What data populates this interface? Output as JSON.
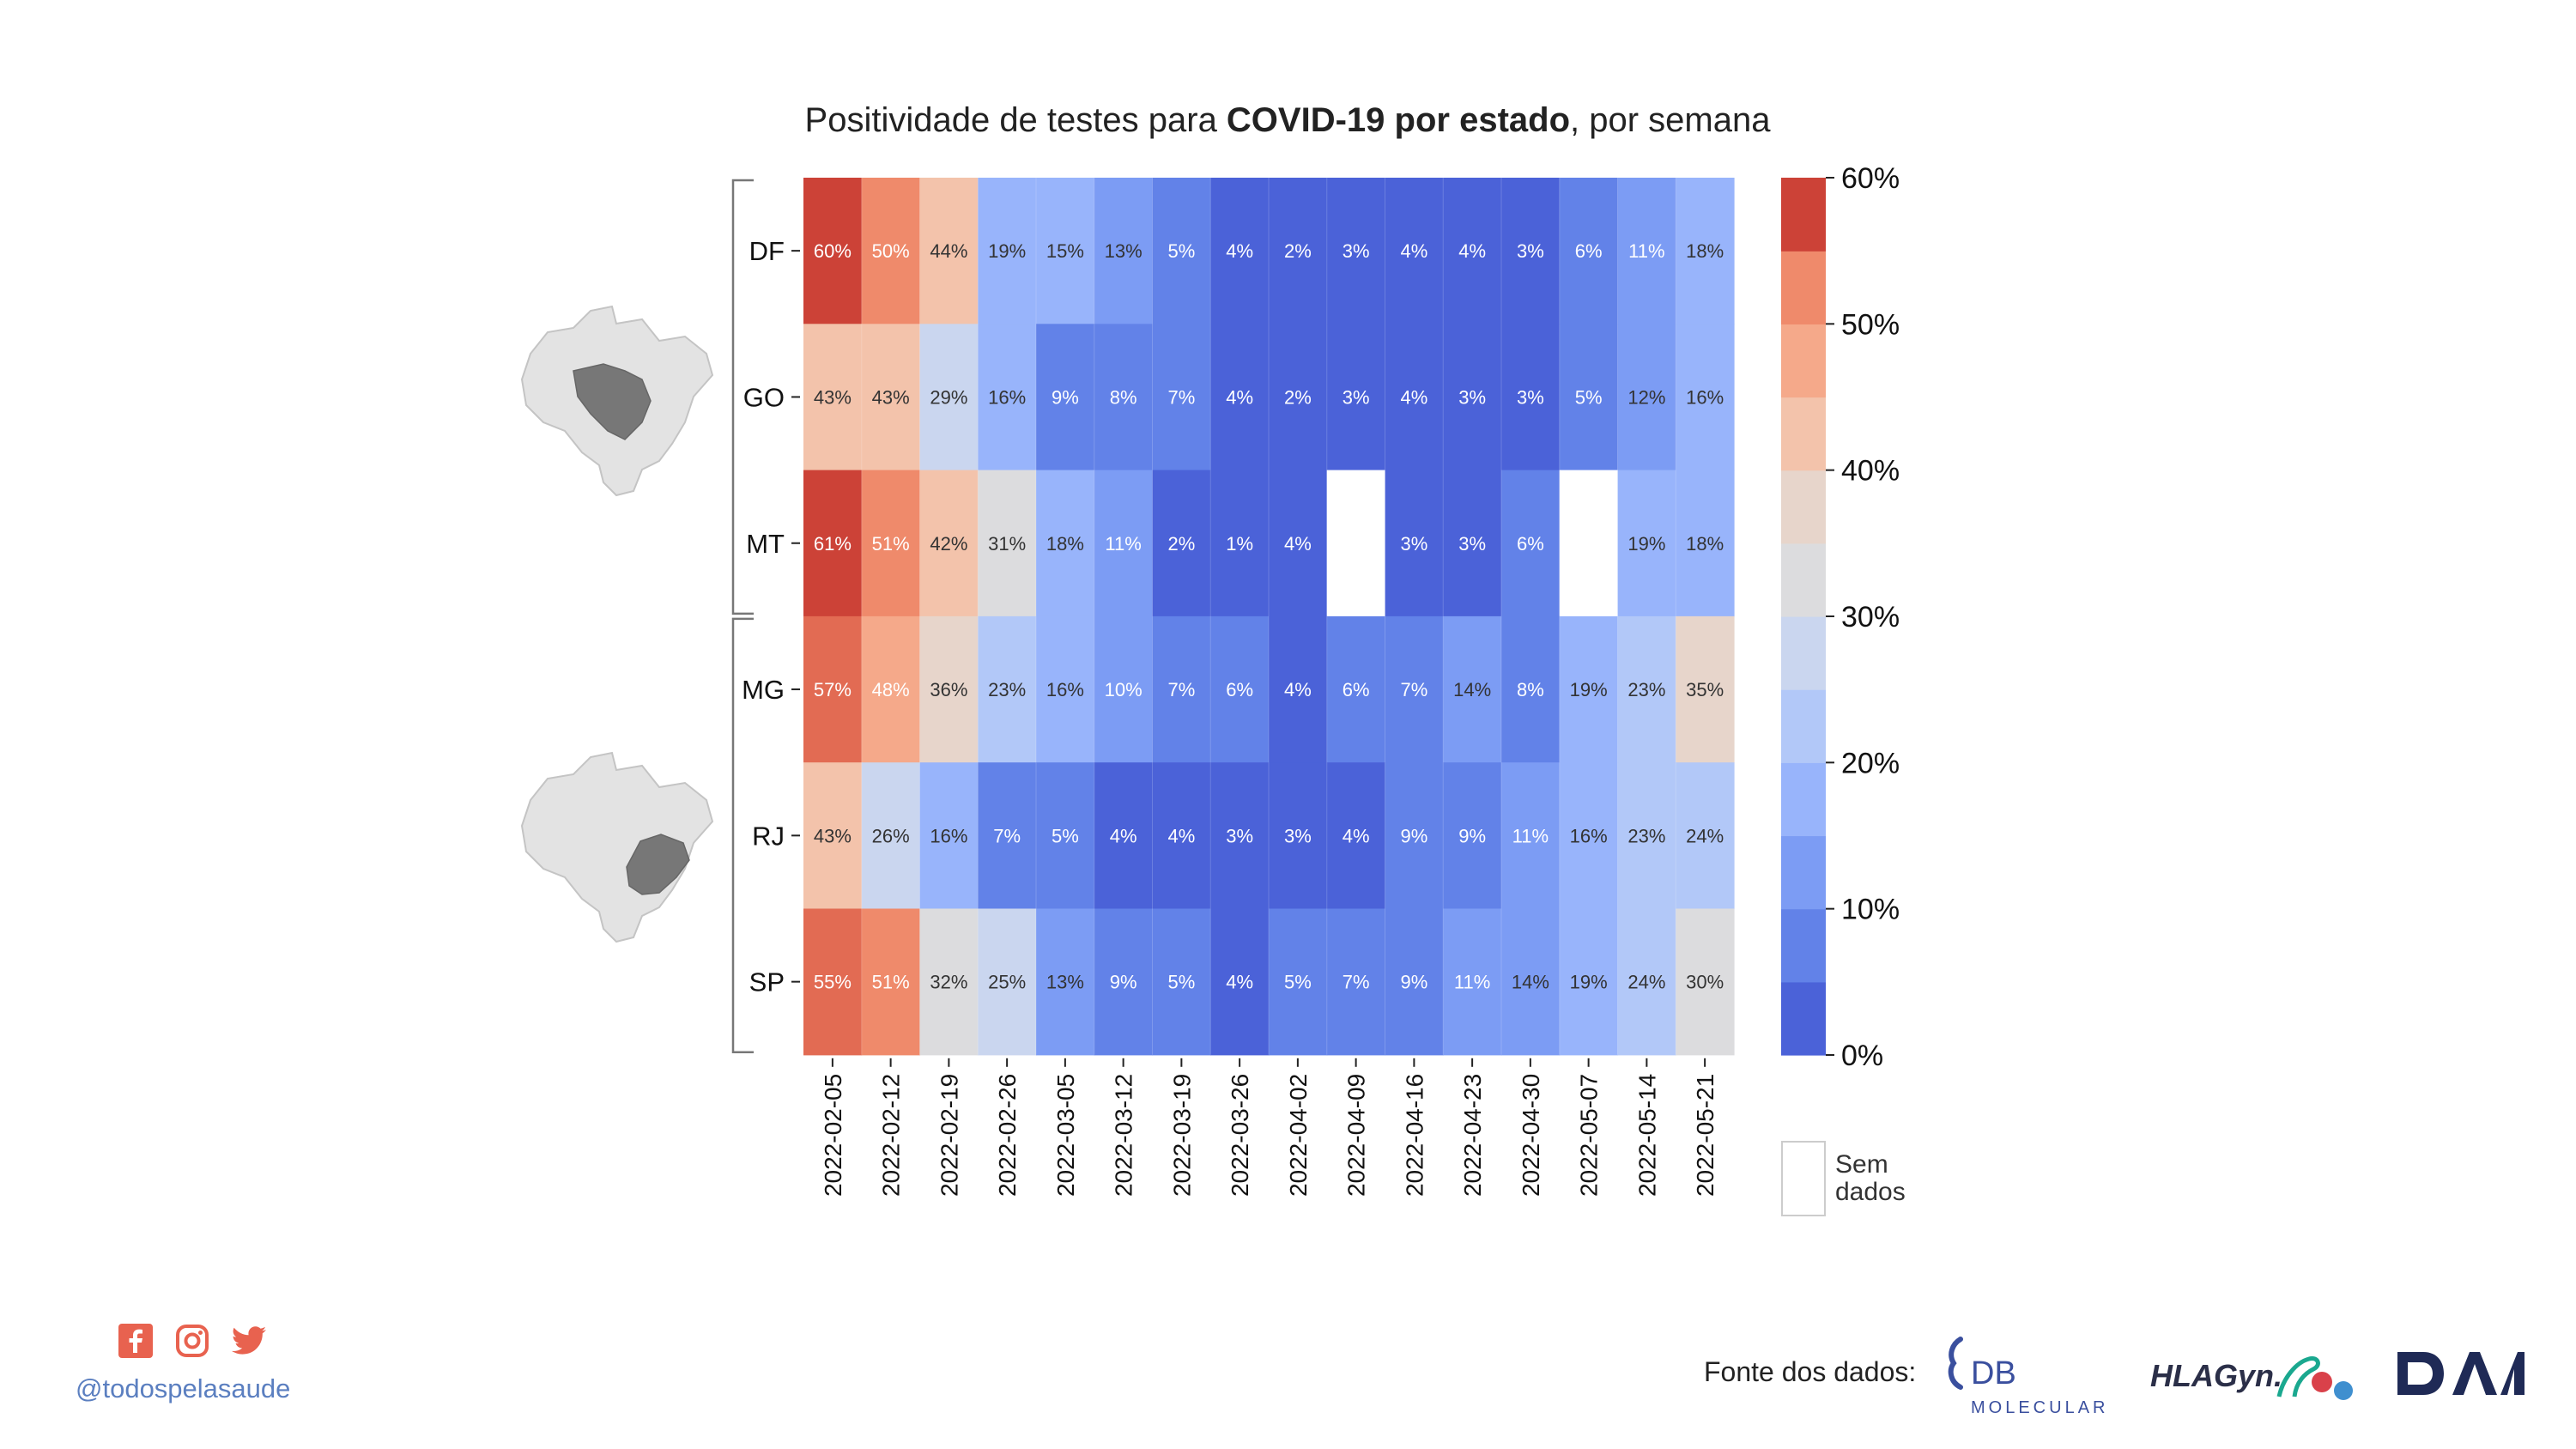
{
  "chart_data": {
    "type": "heatmap",
    "title_parts": [
      {
        "text": "Positividade de testes para ",
        "bold": false
      },
      {
        "text": "COVID-19 por estado",
        "bold": true
      },
      {
        "text": ", por semana",
        "bold": false
      }
    ],
    "x": [
      "2022-02-05",
      "2022-02-12",
      "2022-02-19",
      "2022-02-26",
      "2022-03-05",
      "2022-03-12",
      "2022-03-19",
      "2022-03-26",
      "2022-04-02",
      "2022-04-09",
      "2022-04-16",
      "2022-04-23",
      "2022-04-30",
      "2022-05-07",
      "2022-05-14",
      "2022-05-21"
    ],
    "y": [
      "DF",
      "GO",
      "MT",
      "MG",
      "RJ",
      "SP"
    ],
    "groups": [
      {
        "rows": [
          "DF",
          "GO",
          "MT"
        ],
        "map_highlight": "centro-oeste"
      },
      {
        "rows": [
          "MG",
          "RJ",
          "SP"
        ],
        "map_highlight": "sudeste"
      }
    ],
    "values": [
      [
        60,
        50,
        44,
        19,
        15,
        13,
        5,
        4,
        2,
        3,
        4,
        4,
        3,
        6,
        11,
        18
      ],
      [
        43,
        43,
        29,
        16,
        9,
        8,
        7,
        4,
        2,
        3,
        4,
        3,
        3,
        5,
        12,
        16
      ],
      [
        61,
        51,
        42,
        31,
        18,
        11,
        2,
        1,
        4,
        null,
        3,
        3,
        6,
        null,
        19,
        18
      ],
      [
        57,
        48,
        36,
        23,
        16,
        10,
        7,
        6,
        4,
        6,
        7,
        14,
        8,
        19,
        23,
        35
      ],
      [
        43,
        26,
        16,
        7,
        5,
        4,
        4,
        3,
        3,
        4,
        9,
        9,
        11,
        16,
        23,
        24
      ],
      [
        55,
        51,
        32,
        25,
        13,
        9,
        5,
        4,
        5,
        7,
        9,
        11,
        14,
        19,
        24,
        30
      ]
    ],
    "value_suffix": "%",
    "colorbar": {
      "ticks": [
        "60%",
        "50%",
        "40%",
        "30%",
        "20%",
        "10%",
        "0%"
      ],
      "min": 0,
      "max": 60,
      "step": 5,
      "colors": [
        "#4b62d8",
        "#6282e8",
        "#7c9cf4",
        "#98b4fb",
        "#b2c8f8",
        "#cad6ef",
        "#dcdcde",
        "#e7d5cb",
        "#f3c3ab",
        "#f5a98a",
        "#ef8a6b",
        "#e26b53",
        "#cc4237"
      ],
      "no_data_label_1": "Sem",
      "no_data_label_2": "dados"
    }
  },
  "footer": {
    "handle": "@todospelasaude",
    "fonte": "Fonte dos dados:",
    "social_color": "#e8624f",
    "logos": {
      "db_main": "DB",
      "db_sub": "MOLECULAR",
      "hla": "HLAGyn.",
      "dasa": "DASA"
    }
  }
}
